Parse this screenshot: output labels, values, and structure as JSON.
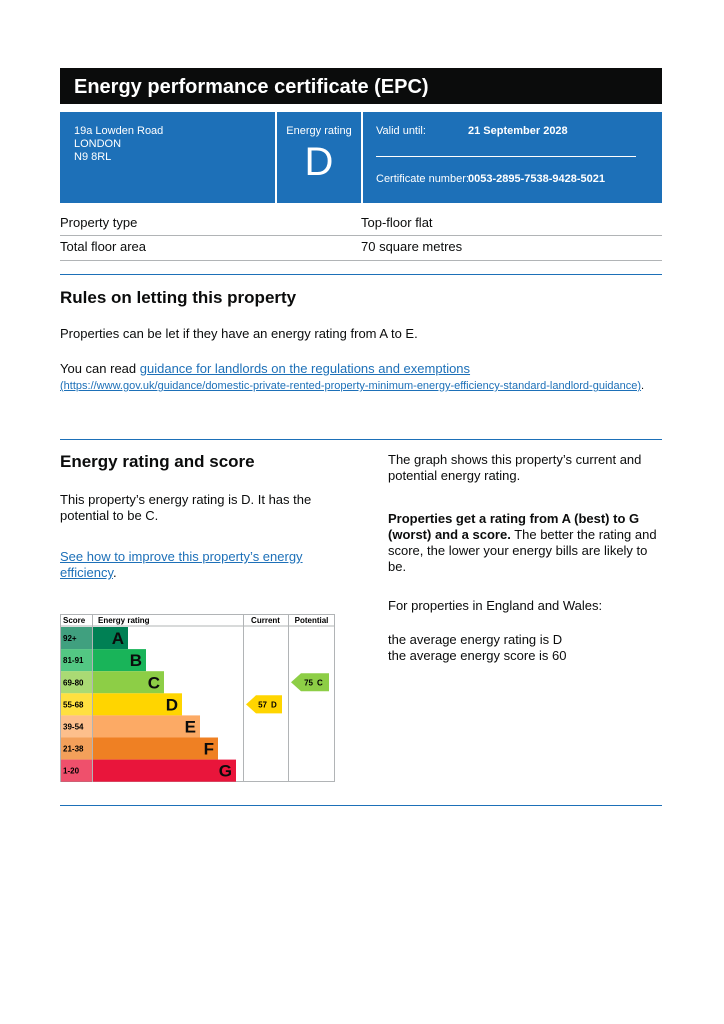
{
  "header": {
    "title": "Energy performance certificate (EPC)"
  },
  "summary": {
    "address": [
      "19a Lowden Road",
      "LONDON",
      "N9 8RL"
    ],
    "rating_label": "Energy rating",
    "rating": "D",
    "valid_until_label": "Valid until:",
    "valid_until": "21 September 2028",
    "certificate_label": "Certificate number:",
    "certificate_number": "0053-2895-7538-9428-5021"
  },
  "property": {
    "rows": [
      [
        "Property type",
        "Top-floor flat"
      ],
      [
        "Total floor area",
        "70 square metres"
      ]
    ]
  },
  "rules": {
    "heading": "Rules on letting this property",
    "paragraph": "Properties can be let if they have an energy rating from A to E.",
    "read_prefix": "You can read ",
    "link": "guidance for landlords on the regulations and exemptions",
    "url": "(https://www.gov.uk/guidance/domestic-private-rented-property-minimum-energy-efficiency-standard-landlord-guidance)",
    "read_suffix": "."
  },
  "energy": {
    "heading": "Energy rating and score",
    "paragraph": "This property’s energy rating is D. It has the potential to be C.",
    "link": "See how to improve this property’s energy efficiency",
    "link_suffix": ".",
    "graph_note": "The graph shows this property’s current and potential energy rating.",
    "bold": "Properties get a rating from A (best) to G (worst) and a score.",
    "explanation": " The better the rating and score, the lower your energy bills are likely to be.",
    "region": "For properties in England and Wales:",
    "averages": [
      "the average energy rating is D",
      "the average energy score is 60"
    ]
  },
  "graph": {
    "headers": [
      "Score",
      "Energy rating",
      "Current",
      "Potential"
    ],
    "bands": [
      {
        "score": "92+",
        "letter": "A",
        "color": "#008054"
      },
      {
        "score": "81-91",
        "letter": "B",
        "color": "#19b459"
      },
      {
        "score": "69-80",
        "letter": "C",
        "color": "#8dce46"
      },
      {
        "score": "55-68",
        "letter": "D",
        "color": "#ffd500"
      },
      {
        "score": "39-54",
        "letter": "E",
        "color": "#fcaa65"
      },
      {
        "score": "21-38",
        "letter": "F",
        "color": "#ef8023"
      },
      {
        "score": "1-20",
        "letter": "G",
        "color": "#e9153b"
      }
    ],
    "current": {
      "score": "57",
      "letter": "D"
    },
    "potential": {
      "score": "75",
      "letter": "C"
    }
  }
}
